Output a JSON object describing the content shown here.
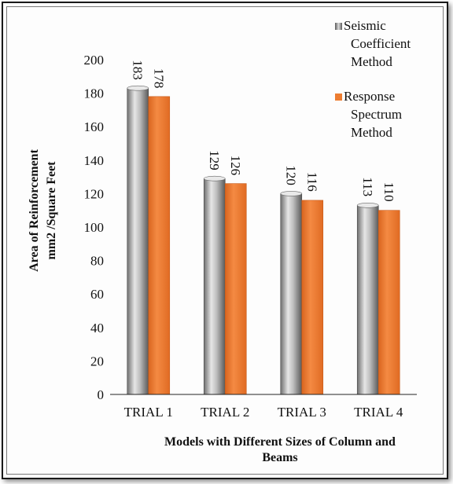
{
  "chart_data": {
    "type": "bar",
    "categories": [
      "TRIAL 1",
      "TRIAL 2",
      "TRIAL 3",
      "TRIAL 4"
    ],
    "series": [
      {
        "name": "Seismic Coefficient Method",
        "legend_lines": [
          "Seismic",
          "Coefficient",
          "Method"
        ],
        "values": [
          183,
          129,
          120,
          113
        ],
        "color": "#9c9c9c"
      },
      {
        "name": "Response Spectrum Method",
        "legend_lines": [
          "Response",
          "Spectrum",
          "Method"
        ],
        "values": [
          178,
          126,
          116,
          110
        ],
        "color": "#ed7d31"
      }
    ],
    "title": "",
    "xlabel_lines": [
      "Models with Different Sizes of  Column and",
      "Beams"
    ],
    "ylabel_lines": [
      "Area of Reinforcement",
      "mm2 /Square Feet"
    ],
    "ylim": [
      0,
      200
    ],
    "yticks": [
      0,
      20,
      40,
      60,
      80,
      100,
      120,
      140,
      160,
      180,
      200
    ],
    "grid": false,
    "legend_position": "top-right",
    "data_labels": true
  }
}
